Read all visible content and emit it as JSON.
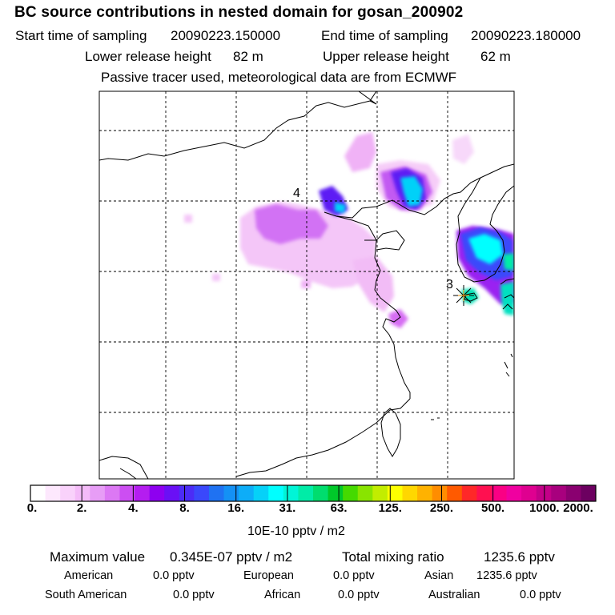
{
  "title": "BC  source contributions in nested domain for gosan_200902",
  "header": {
    "start_label": "Start time of sampling",
    "start_value": "20090223.150000",
    "end_label": "End time of sampling",
    "end_value": "20090223.180000",
    "lower_label": "Lower release height",
    "lower_value": "82 m",
    "upper_label": "Upper release height",
    "upper_value": "62 m",
    "note": "Passive tracer used, meteorological data are from ECMWF"
  },
  "map": {
    "markers": [
      {
        "label": "4"
      },
      {
        "label": "3"
      }
    ],
    "receptor": "gosan-receptor"
  },
  "colorbar": {
    "colors": [
      "#ffffff",
      "#fde8fd",
      "#f9d2fb",
      "#f4bbf8",
      "#e79df6",
      "#dc78f4",
      "#cc4ef2",
      "#b41df0",
      "#8e00f0",
      "#6a10f5",
      "#4c2cf6",
      "#3a48fb",
      "#1f72f2",
      "#1491f5",
      "#0dadf8",
      "#06d1f8",
      "#00ffff",
      "#00f5d7",
      "#00eca7",
      "#00dd6e",
      "#00c82a",
      "#45da00",
      "#89e400",
      "#c2ed00",
      "#fdff00",
      "#ffd700",
      "#ffb200",
      "#ff8d00",
      "#ff5a00",
      "#ff2828",
      "#ff1050",
      "#fa0084",
      "#f000a0",
      "#df0090",
      "#c30088",
      "#a8007e",
      "#8a0070",
      "#6c0060"
    ],
    "ticks": [
      "0.",
      "2.",
      "4.",
      "8.",
      "16.",
      "31.",
      "63.",
      "125.",
      "250.",
      "500.",
      "1000.",
      "2000."
    ],
    "unit": "10E-10 pptv / m2"
  },
  "stats": {
    "max_label": "Maximum value",
    "max_value": "0.345E-07 pptv / m2",
    "total_label": "Total mixing ratio",
    "total_value": "1235.6 pptv",
    "regions": [
      {
        "name": "American",
        "value": "0.0 pptv"
      },
      {
        "name": "European",
        "value": "0.0 pptv"
      },
      {
        "name": "Asian",
        "value": "1235.6 pptv"
      },
      {
        "name": "South American",
        "value": "0.0 pptv"
      },
      {
        "name": "African",
        "value": "0.0 pptv"
      },
      {
        "name": "Australian",
        "value": "0.0 pptv"
      }
    ]
  }
}
